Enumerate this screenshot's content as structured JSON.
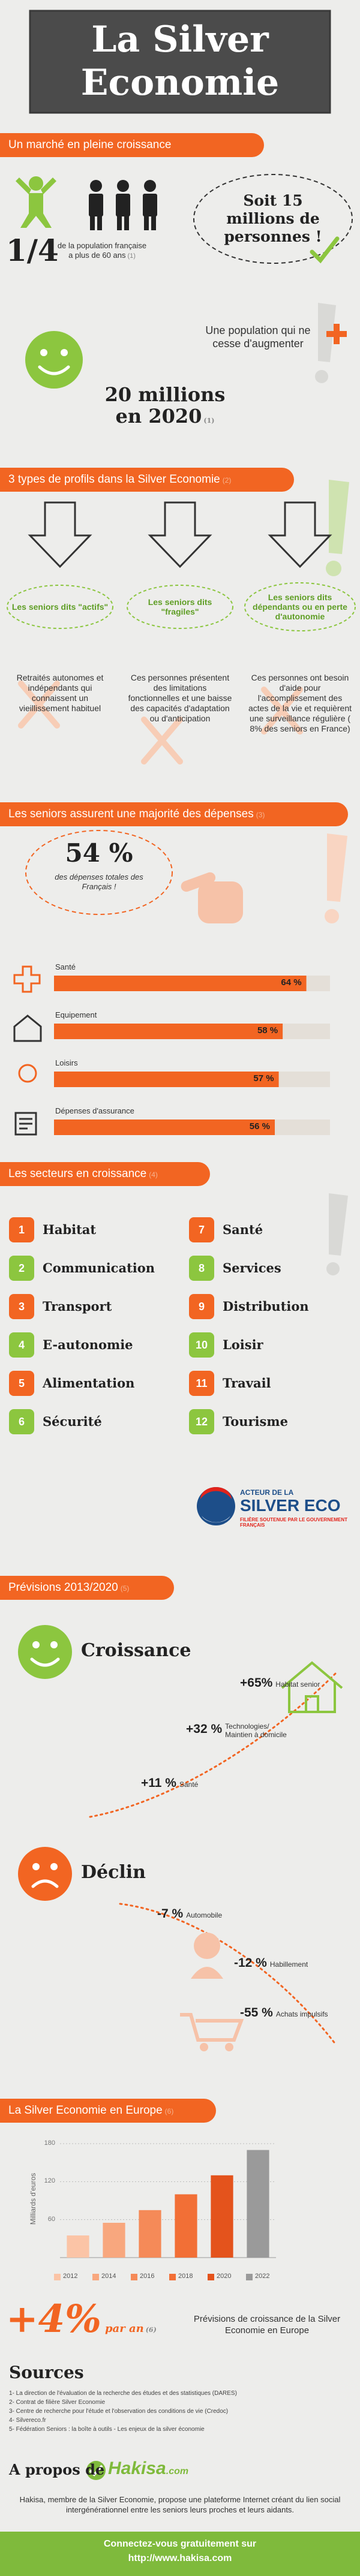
{
  "header": {
    "title": "La Silver Economie"
  },
  "market": {
    "banner": "Un marché en pleine croissance",
    "fraction": "1/4",
    "fraction_text": "de la population française a plus de 60 ans",
    "fraction_ref": "(1)",
    "bubble": "Soit 15 millions de personnes !",
    "population_text": "Une population qui ne cesse d'augmenter",
    "forecast": "20 millions en 2020",
    "forecast_ref": "(1)"
  },
  "profiles": {
    "banner": "3 types de profils dans la Silver Economie",
    "ref": "(2)",
    "items": [
      {
        "label": "Les seniors dits \"actifs\"",
        "text": "Retraités autonomes et indépendants qui connaissent un vieillissement habituel"
      },
      {
        "label": "Les seniors dits \"fragiles\"",
        "text": "Ces personnes présentent des limitations fonctionnelles et une baisse des capacités d'adaptation ou d'anticipation"
      },
      {
        "label": "Les seniors dits dépendants ou en perte d'autonomie",
        "text": "Ces personnes ont besoin d'aide pour l'accomplissement des actes de la vie et requièrent une surveillance régulière ( 8% des seniors en France)"
      }
    ]
  },
  "spending": {
    "banner": "Les seniors assurent une majorité des dépenses",
    "ref": "(3)",
    "headline": "54 %",
    "headline_text": "des dépenses totales des Français !",
    "chart": {
      "type": "bar",
      "categories": [
        "Santé",
        "Equipement",
        "Loisirs",
        "Dépenses d'assurance"
      ],
      "values": [
        64,
        58,
        57,
        56
      ],
      "value_labels": [
        "64 %",
        "58 %",
        "57 %",
        "56 %"
      ],
      "xlim": [
        0,
        70
      ],
      "color": "#f26522"
    }
  },
  "sectors": {
    "banner": "Les secteurs en croissance",
    "ref": "(4)",
    "items": [
      {
        "number": 1,
        "label": "Habitat"
      },
      {
        "number": 2,
        "label": "Communication"
      },
      {
        "number": 3,
        "label": "Transport"
      },
      {
        "number": 4,
        "label": "E-autonomie"
      },
      {
        "number": 5,
        "label": "Alimentation"
      },
      {
        "number": 6,
        "label": "Sécurité"
      },
      {
        "number": 7,
        "label": "Santé"
      },
      {
        "number": 8,
        "label": "Services"
      },
      {
        "number": 9,
        "label": "Distribution"
      },
      {
        "number": 10,
        "label": "Loisir"
      },
      {
        "number": 11,
        "label": "Travail"
      },
      {
        "number": 12,
        "label": "Tourisme"
      }
    ],
    "logo": {
      "line1": "ACTEUR DE LA",
      "line2": "SILVER ECO",
      "line3": "FILIÈRE SOUTENUE PAR LE GOUVERNEMENT FRANÇAIS"
    }
  },
  "forecasts": {
    "banner": "Prévisions 2013/2020",
    "ref": "(5)",
    "growth": {
      "title": "Croissance",
      "items": [
        {
          "value": "+65%",
          "label": "Habitat senior"
        },
        {
          "value": "+32 %",
          "label": "Technologies/ Maintien à domicile"
        },
        {
          "value": "+11 %",
          "label": "Santé"
        }
      ]
    },
    "decline": {
      "title": "Déclin",
      "items": [
        {
          "value": "-7 %",
          "label": "Automobile"
        },
        {
          "value": "-12 %",
          "label": "Habillement"
        },
        {
          "value": "-55 %",
          "label": "Achats impulsifs"
        }
      ]
    }
  },
  "europe": {
    "banner": "La Silver Economie en Europe",
    "ref": "(6)",
    "chart": {
      "type": "bar",
      "y_label": "Milliards d'euros",
      "categories": [
        "2012",
        "2014",
        "2016",
        "2018",
        "2020",
        "2022"
      ],
      "values": [
        35,
        55,
        75,
        100,
        130,
        170
      ],
      "colors": [
        "#fbc4a6",
        "#f8a77e",
        "#f58a58",
        "#f26f36",
        "#e4531c",
        "#9a9a9a"
      ],
      "ylim": [
        0,
        180
      ],
      "yticks": [
        60,
        120,
        180
      ],
      "grid": true
    },
    "rate": "+4%",
    "rate_suffix": "par an",
    "rate_ref": "(6)",
    "rate_text": "Prévisions de croissance de la Silver Economie en Europe"
  },
  "sources": {
    "title": "Sources",
    "items": [
      "1- La direction de l'évaluation de la recherche des études et des statistiques (DARES)",
      "2- Contrat de filière Silver Economie",
      "3- Centre de recherche pour l'étude et l'observation des conditions de vie (Credoc)",
      "4- Silvereco.fr",
      "5- Fédération Seniors : la boîte à outils - Les enjeux de la silver économie"
    ]
  },
  "about": {
    "title": "A propos de",
    "brand": "Hakisa",
    "brand_suffix": ".com",
    "text": "Hakisa, membre de la Silver Economie, propose une plateforme Internet créant du lien social intergénérationnel entre les seniors leurs proches et leurs aidants."
  },
  "footer": {
    "line1": "Connectez-vous gratuitement sur",
    "line2": "http://www.hakisa.com"
  }
}
